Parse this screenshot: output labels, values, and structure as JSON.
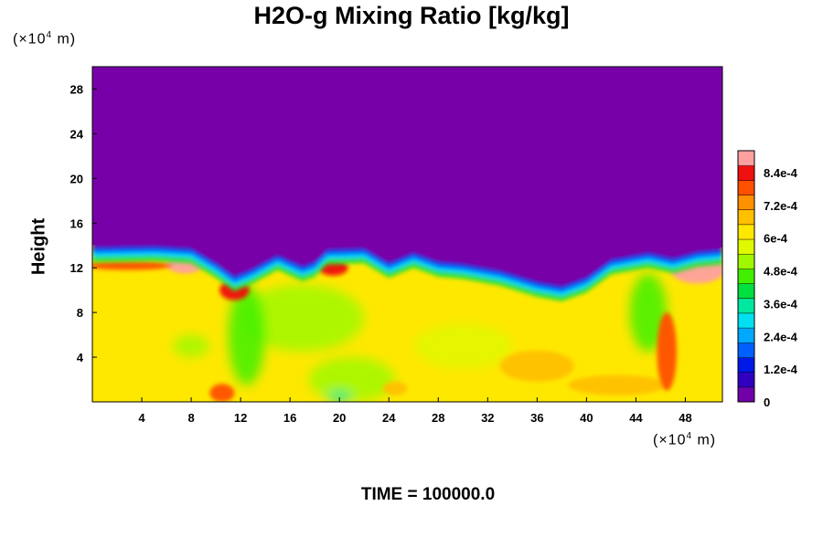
{
  "chart_data": {
    "type": "heatmap",
    "title": "H2O-g Mixing Ratio [kg/kg]",
    "ylabel": "Height",
    "xlabel": "",
    "x_unit_prefix": "(×10",
    "x_unit_exponent": "4",
    "x_unit_suffix": " m)",
    "y_unit_prefix": "(×10",
    "y_unit_exponent": "4",
    "y_unit_suffix": " m)",
    "xlim": [
      0,
      51
    ],
    "ylim": [
      0,
      30
    ],
    "x_ticks": [
      4,
      8,
      12,
      16,
      20,
      24,
      28,
      32,
      36,
      40,
      44,
      48
    ],
    "y_ticks": [
      4,
      8,
      12,
      16,
      20,
      24,
      28
    ],
    "vapor_top_height": [
      [
        0,
        13.7
      ],
      [
        5,
        13.8
      ],
      [
        8,
        13.6
      ],
      [
        10,
        12.3
      ],
      [
        11.5,
        11.1
      ],
      [
        13,
        11.8
      ],
      [
        15,
        13.0
      ],
      [
        17,
        12.0
      ],
      [
        18,
        12.4
      ],
      [
        19,
        13.5
      ],
      [
        22,
        13.6
      ],
      [
        24,
        12.3
      ],
      [
        26,
        13.2
      ],
      [
        28,
        12.4
      ],
      [
        30,
        12.2
      ],
      [
        33,
        11.6
      ],
      [
        36,
        10.6
      ],
      [
        38,
        10.2
      ],
      [
        40,
        11.0
      ],
      [
        42,
        12.6
      ],
      [
        45,
        13.2
      ],
      [
        47,
        12.7
      ],
      [
        49,
        13.3
      ],
      [
        51,
        13.5
      ]
    ],
    "moist_patches": [
      {
        "x": 7.5,
        "y": 12.3,
        "rx": 1.5,
        "ry": 0.8,
        "value": 0.00088
      },
      {
        "x": 3.0,
        "y": 12.2,
        "rx": 3.5,
        "ry": 0.4,
        "value": 0.0008
      },
      {
        "x": 19.5,
        "y": 12.0,
        "rx": 1.2,
        "ry": 0.7,
        "value": 0.00086
      },
      {
        "x": 49.0,
        "y": 11.8,
        "rx": 2.2,
        "ry": 1.2,
        "value": 0.00087
      },
      {
        "x": 11.5,
        "y": 10.0,
        "rx": 1.2,
        "ry": 0.9,
        "value": 0.00082
      },
      {
        "x": 36.0,
        "y": 3.2,
        "rx": 3.0,
        "ry": 1.4,
        "value": 0.00069
      },
      {
        "x": 42.5,
        "y": 1.5,
        "rx": 4.0,
        "ry": 0.9,
        "value": 0.00068
      },
      {
        "x": 46.5,
        "y": 4.5,
        "rx": 0.8,
        "ry": 3.5,
        "value": 0.00076
      },
      {
        "x": 10.5,
        "y": 0.8,
        "rx": 1.0,
        "ry": 0.8,
        "value": 0.0008
      },
      {
        "x": 24.5,
        "y": 1.2,
        "rx": 1.0,
        "ry": 0.6,
        "value": 0.00065
      }
    ],
    "dry_patches": [
      {
        "x": 17.0,
        "y": 7.5,
        "rx": 5.0,
        "ry": 3.0,
        "value": 0.0005
      },
      {
        "x": 12.5,
        "y": 6.0,
        "rx": 1.5,
        "ry": 4.5,
        "value": 0.00048
      },
      {
        "x": 21.0,
        "y": 2.0,
        "rx": 3.5,
        "ry": 2.0,
        "value": 0.0005
      },
      {
        "x": 45.0,
        "y": 8.0,
        "rx": 1.5,
        "ry": 3.5,
        "value": 0.00046
      },
      {
        "x": 20.0,
        "y": 0.5,
        "rx": 1.0,
        "ry": 0.5,
        "value": 0.00034
      },
      {
        "x": 30.0,
        "y": 5.0,
        "rx": 4.0,
        "ry": 2.0,
        "value": 0.00057
      },
      {
        "x": 8.0,
        "y": 5.0,
        "rx": 1.5,
        "ry": 1.0,
        "value": 0.00052
      }
    ],
    "background_value": 0.00062,
    "free_atmosphere_value": 0,
    "colorbar": {
      "min": 0,
      "max": 0.00092,
      "tick_labels": [
        "0",
        "1.2e-4",
        "2.4e-4",
        "3.6e-4",
        "4.8e-4",
        "6e-4",
        "7.2e-4",
        "8.4e-4"
      ],
      "tick_values": [
        0,
        0.00012,
        0.00024,
        0.00036,
        0.00048,
        0.0006,
        0.00072,
        0.00084
      ],
      "colors": [
        "#7000a8",
        "#3000c0",
        "#0018e8",
        "#0060ff",
        "#00a8ff",
        "#00e0f0",
        "#00e8a0",
        "#00e040",
        "#40f000",
        "#a0f800",
        "#e0f800",
        "#ffe800",
        "#ffc000",
        "#ff9000",
        "#ff5000",
        "#f01010",
        "#ffa0a0"
      ]
    },
    "colors": {
      "purple": "#7800a8",
      "dark_blue": "#1020d8",
      "blue": "#0070ff",
      "cyan": "#00d8ff",
      "green": "#30e030",
      "lime": "#b8f030",
      "yellow": "#f0f040",
      "orange": "#ffb000",
      "red": "#f02010",
      "pink": "#ffb0b0"
    }
  },
  "time_label": "TIME = ",
  "time_value": "100000.0"
}
